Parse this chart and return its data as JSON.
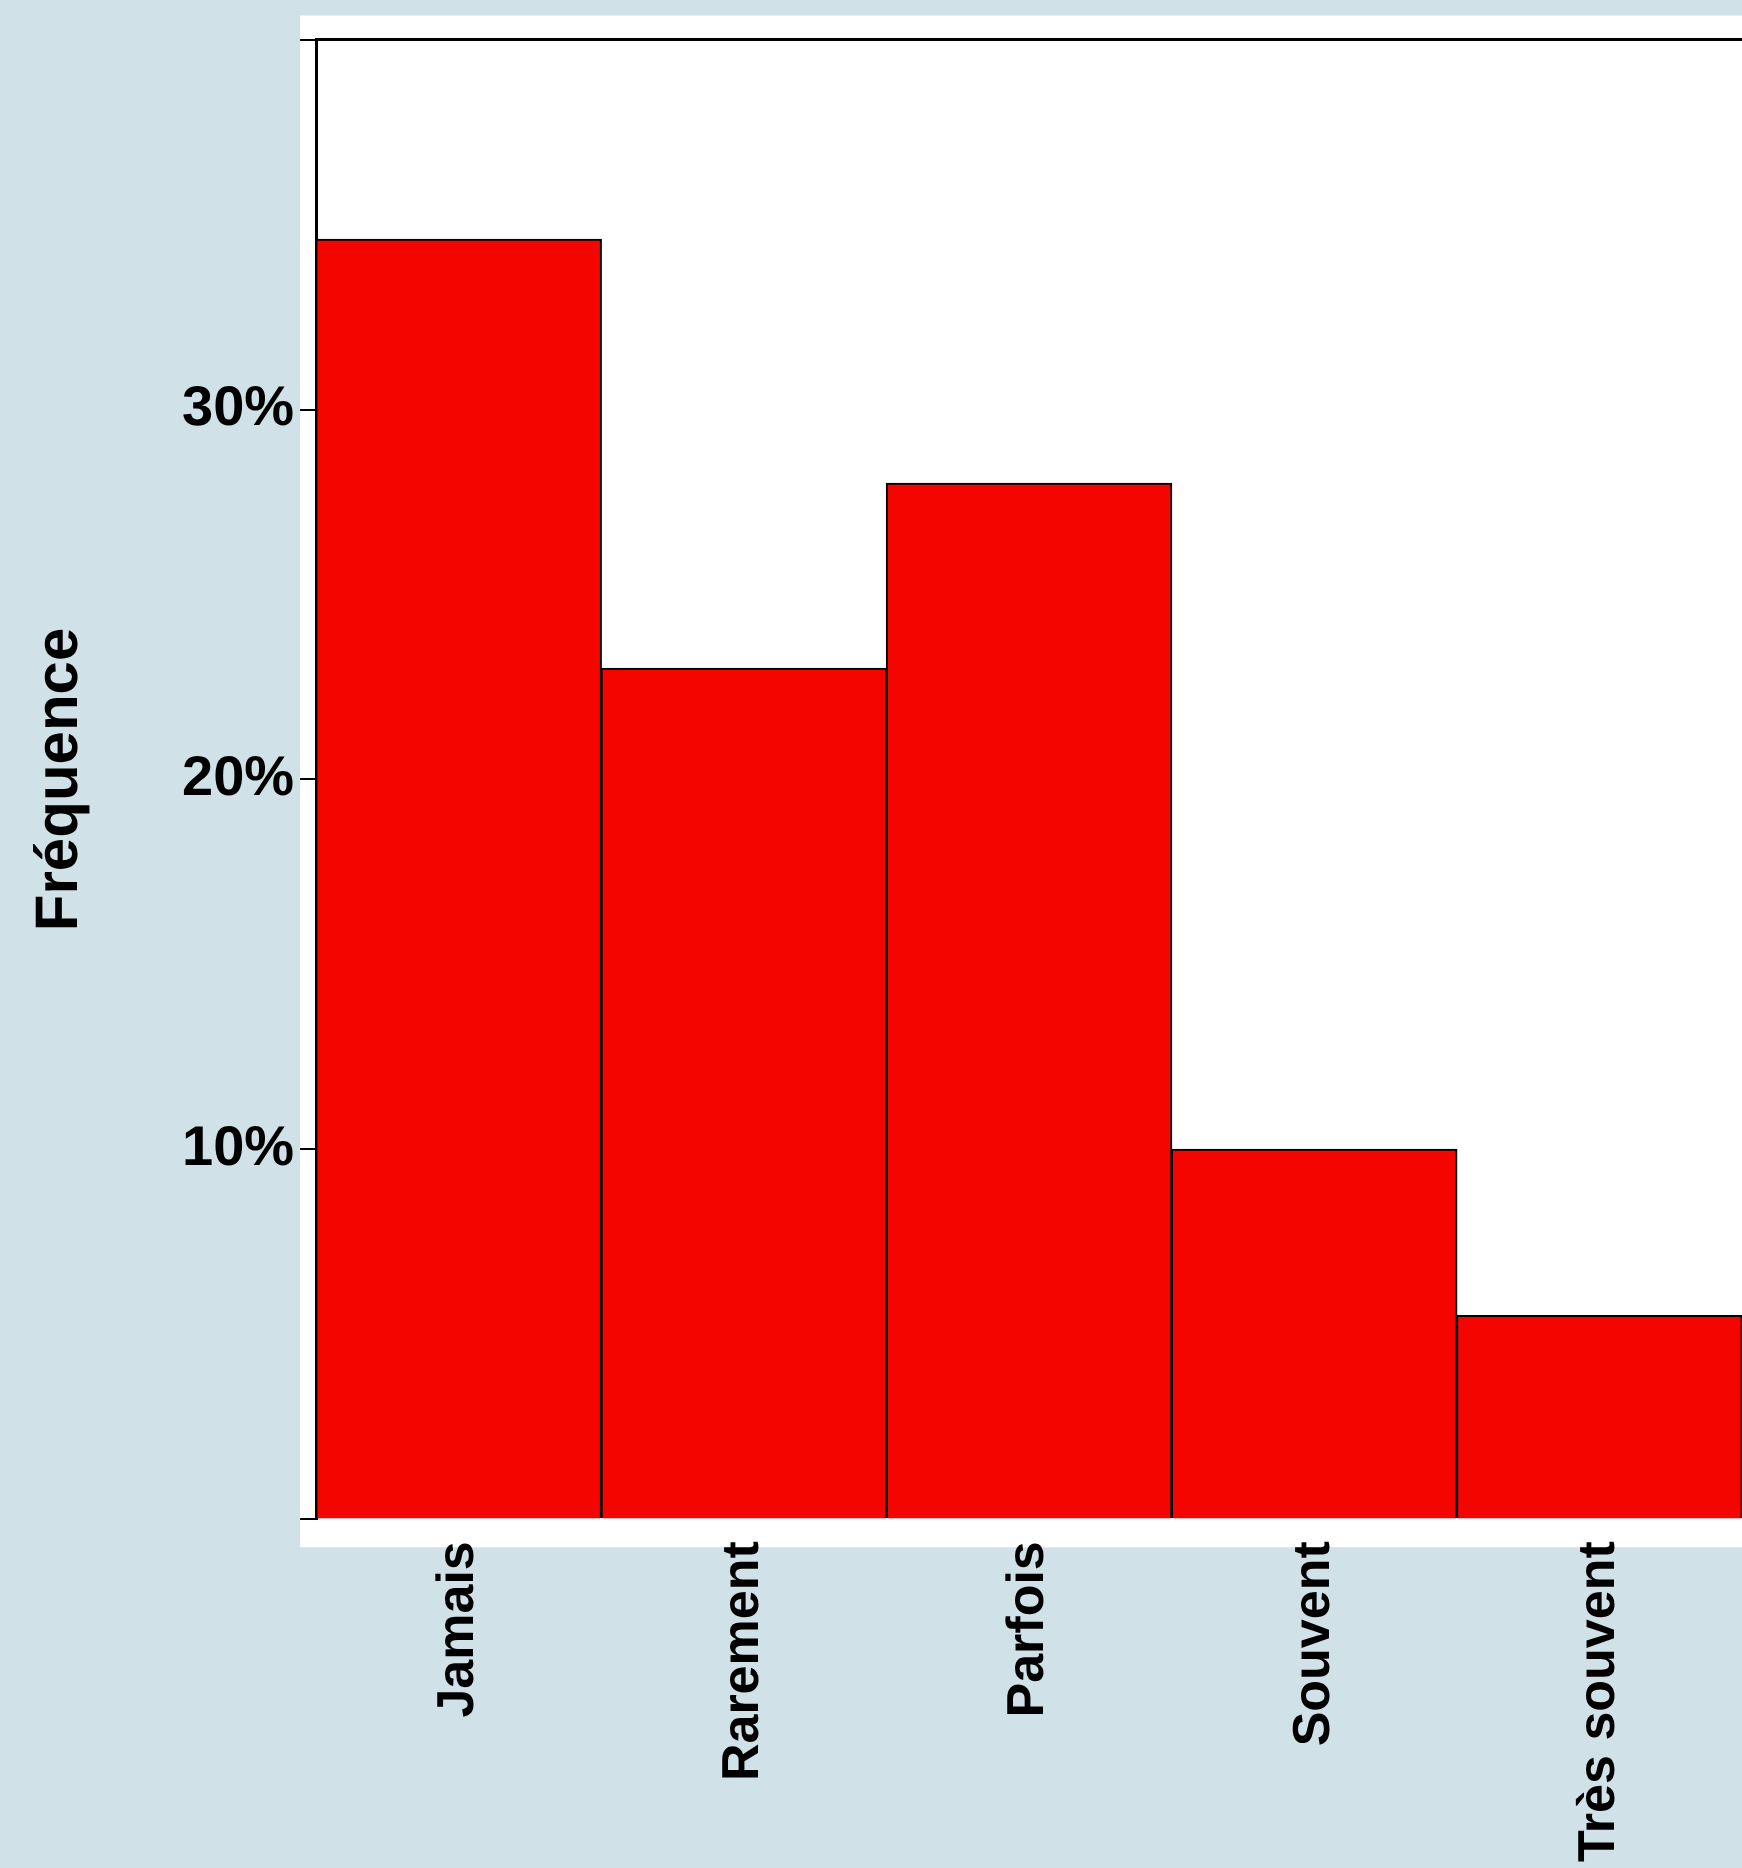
{
  "chart_data": {
    "type": "bar",
    "ylabel": "Fréquence",
    "categories": [
      "Jamais",
      "Rarement",
      "Parfois",
      "Souvent",
      "Très souvent"
    ],
    "values": [
      34.6,
      23,
      28,
      10,
      5.5
    ],
    "color": "#f50500",
    "ylim": [
      0,
      40
    ],
    "yticks": [
      {
        "value": 0,
        "label": null
      },
      {
        "value": 10,
        "label": "10%"
      },
      {
        "value": 20,
        "label": "20%"
      },
      {
        "value": 30,
        "label": "30%"
      },
      {
        "value": 40,
        "label": null
      }
    ],
    "legend": false
  }
}
